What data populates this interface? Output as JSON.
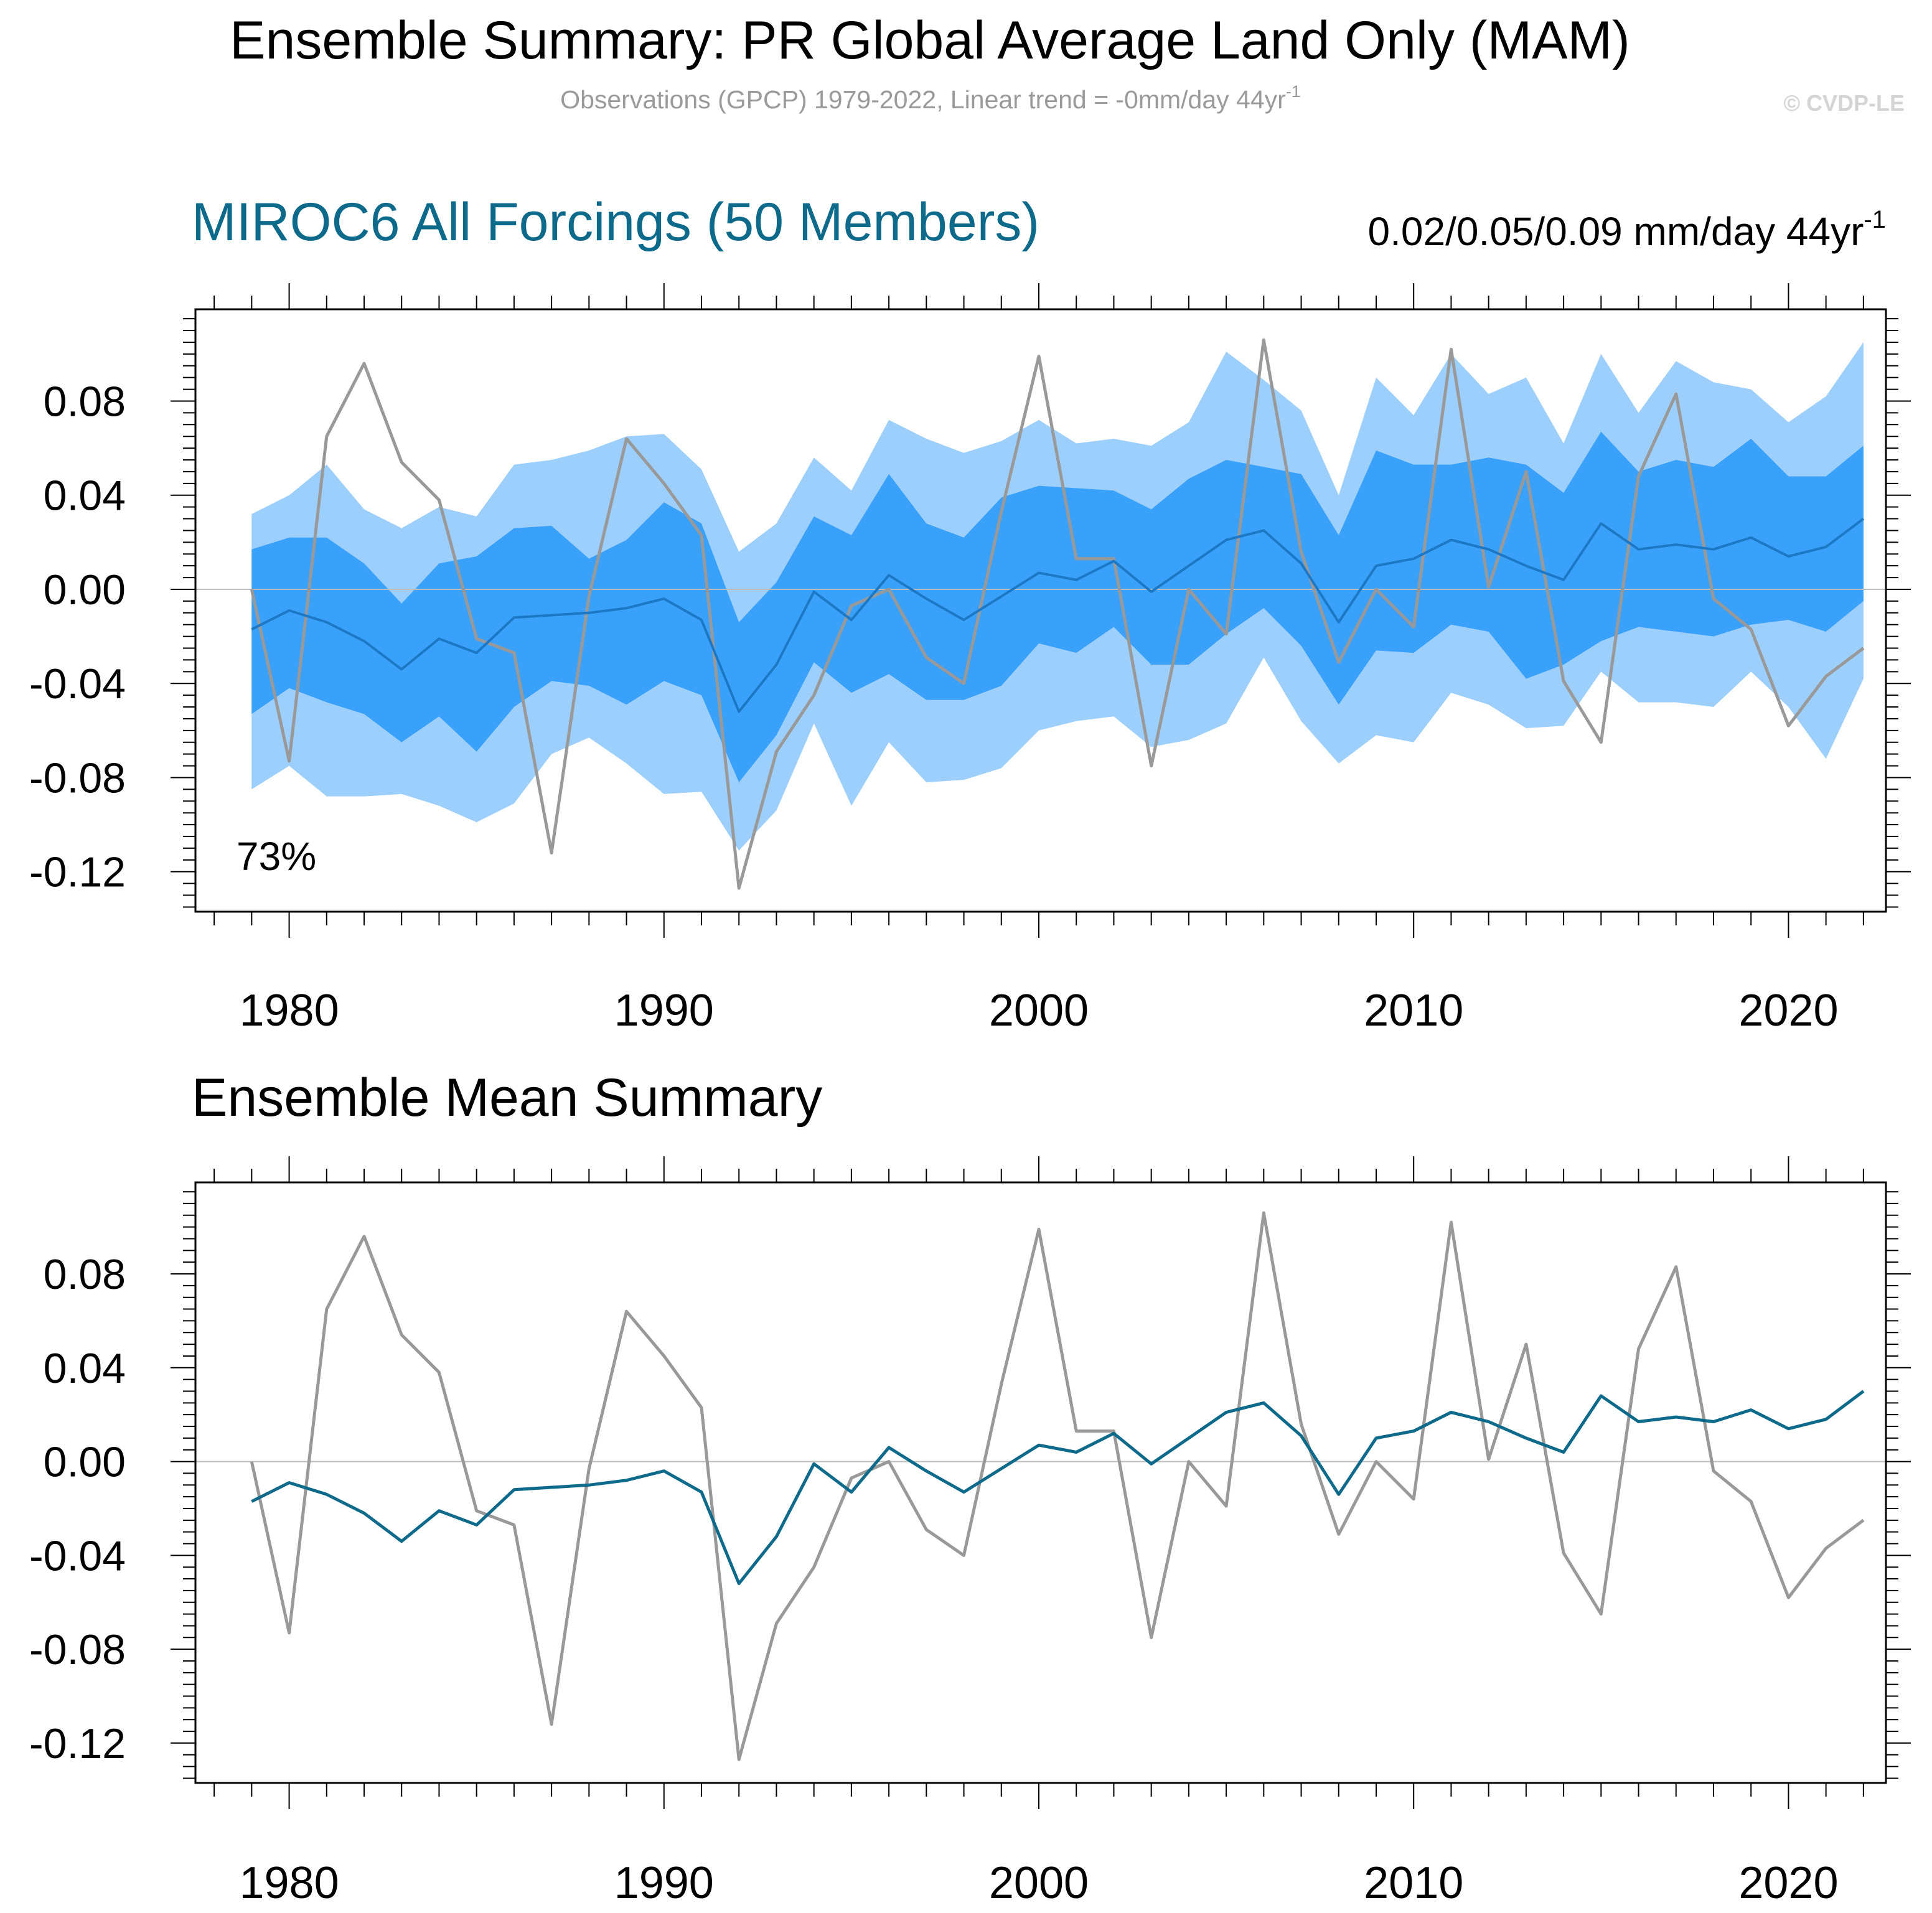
{
  "header": {
    "title": "Ensemble Summary: PR Global Average Land Only (MAM)",
    "subtitle": "Observations (GPCP) 1979-2022, Linear trend = -0mm/day 44yr",
    "subtitle_sup": "-1",
    "copyright": "© CVDP-LE"
  },
  "panel1": {
    "title": "MIROC6 All Forcings (50 Members)",
    "trend_text": "0.02/0.05/0.09 mm/day 44yr",
    "trend_sup": "-1",
    "percent_label": "73%"
  },
  "panel2": {
    "title": "Ensemble Mean Summary"
  },
  "colors": {
    "outer_band": "#9dcffd",
    "inner_band": "#3aa1fb",
    "ens_mean_panel1": "#1c78c4",
    "ens_mean_panel2": "#0e6a8a",
    "observations": "#999999",
    "zero_line": "#bdbdbd"
  },
  "chart_data": [
    {
      "type": "area",
      "title": "MIROC6 All Forcings (50 Members)",
      "xlabel": "",
      "ylabel": "",
      "x": [
        1979,
        1980,
        1981,
        1982,
        1983,
        1984,
        1985,
        1986,
        1987,
        1988,
        1989,
        1990,
        1991,
        1992,
        1993,
        1994,
        1995,
        1996,
        1997,
        1998,
        1999,
        2000,
        2001,
        2002,
        2003,
        2004,
        2005,
        2006,
        2007,
        2008,
        2009,
        2010,
        2011,
        2012,
        2013,
        2014,
        2015,
        2016,
        2017,
        2018,
        2019,
        2020,
        2021,
        2022
      ],
      "xticks": [
        1980,
        1990,
        2000,
        2010,
        2020
      ],
      "xtick_labels": [
        "1980",
        "1990",
        "2000",
        "2010",
        "2020"
      ],
      "yticks": [
        0.08,
        0.04,
        0.0,
        -0.04,
        -0.08,
        -0.12
      ],
      "ytick_labels": [
        "0.08",
        "0.04",
        "0.00",
        "-0.04",
        "-0.08",
        "-0.12"
      ],
      "xlim": [
        1977.5,
        2022.6
      ],
      "ylim": [
        -0.137,
        0.119
      ],
      "series": [
        {
          "name": "ensemble 2.5-97.5% upper",
          "values": [
            0.032,
            0.04,
            0.053,
            0.034,
            0.026,
            0.035,
            0.031,
            0.053,
            0.055,
            0.059,
            0.065,
            0.066,
            0.051,
            0.016,
            0.028,
            0.056,
            0.042,
            0.072,
            0.064,
            0.058,
            0.063,
            0.072,
            0.062,
            0.064,
            0.061,
            0.071,
            0.101,
            0.089,
            0.076,
            0.04,
            0.09,
            0.074,
            0.1,
            0.083,
            0.09,
            0.062,
            0.1,
            0.075,
            0.097,
            0.088,
            0.085,
            0.071,
            0.082,
            0.105
          ]
        },
        {
          "name": "ensemble 2.5-97.5% lower",
          "values": [
            -0.085,
            -0.075,
            -0.088,
            -0.088,
            -0.087,
            -0.092,
            -0.099,
            -0.091,
            -0.07,
            -0.063,
            -0.074,
            -0.087,
            -0.086,
            -0.111,
            -0.094,
            -0.057,
            -0.092,
            -0.065,
            -0.082,
            -0.081,
            -0.076,
            -0.06,
            -0.056,
            -0.054,
            -0.067,
            -0.064,
            -0.057,
            -0.029,
            -0.056,
            -0.074,
            -0.062,
            -0.065,
            -0.044,
            -0.049,
            -0.059,
            -0.058,
            -0.035,
            -0.048,
            -0.048,
            -0.05,
            -0.035,
            -0.05,
            -0.072,
            -0.038
          ]
        },
        {
          "name": "ensemble 16-84% upper",
          "values": [
            0.017,
            0.022,
            0.022,
            0.011,
            -0.006,
            0.011,
            0.014,
            0.026,
            0.027,
            0.013,
            0.021,
            0.037,
            0.028,
            -0.014,
            0.003,
            0.031,
            0.023,
            0.049,
            0.028,
            0.022,
            0.039,
            0.044,
            0.043,
            0.042,
            0.034,
            0.047,
            0.055,
            0.052,
            0.049,
            0.023,
            0.059,
            0.053,
            0.053,
            0.056,
            0.053,
            0.041,
            0.067,
            0.05,
            0.055,
            0.052,
            0.064,
            0.048,
            0.048,
            0.061
          ]
        },
        {
          "name": "ensemble 16-84% lower",
          "values": [
            -0.053,
            -0.042,
            -0.048,
            -0.053,
            -0.065,
            -0.054,
            -0.069,
            -0.05,
            -0.039,
            -0.041,
            -0.049,
            -0.039,
            -0.045,
            -0.082,
            -0.062,
            -0.031,
            -0.044,
            -0.036,
            -0.047,
            -0.047,
            -0.041,
            -0.023,
            -0.027,
            -0.016,
            -0.032,
            -0.032,
            -0.019,
            -0.008,
            -0.024,
            -0.049,
            -0.026,
            -0.027,
            -0.015,
            -0.018,
            -0.038,
            -0.032,
            -0.022,
            -0.016,
            -0.018,
            -0.02,
            -0.015,
            -0.013,
            -0.018,
            -0.005
          ]
        },
        {
          "name": "ensemble mean",
          "values": [
            -0.017,
            -0.009,
            -0.014,
            -0.022,
            -0.034,
            -0.021,
            -0.027,
            -0.012,
            -0.011,
            -0.01,
            -0.008,
            -0.004,
            -0.013,
            -0.052,
            -0.032,
            -0.001,
            -0.013,
            0.006,
            -0.004,
            -0.013,
            -0.003,
            0.007,
            0.004,
            0.012,
            -0.001,
            0.01,
            0.021,
            0.025,
            0.011,
            -0.014,
            0.01,
            0.013,
            0.021,
            0.017,
            0.01,
            0.004,
            0.028,
            0.017,
            0.019,
            0.017,
            0.022,
            0.014,
            0.018,
            0.03
          ]
        },
        {
          "name": "observations (GPCP)",
          "values": [
            0.0,
            -0.073,
            0.065,
            0.096,
            0.054,
            0.038,
            -0.021,
            -0.027,
            -0.112,
            -0.003,
            0.064,
            0.045,
            0.023,
            -0.127,
            -0.069,
            -0.045,
            -0.007,
            0.0,
            -0.029,
            -0.04,
            0.033,
            0.099,
            0.013,
            0.013,
            -0.075,
            0.0,
            -0.019,
            0.106,
            0.016,
            -0.031,
            0.0,
            -0.016,
            0.102,
            0.001,
            0.05,
            -0.039,
            -0.065,
            0.048,
            0.083,
            -0.004,
            -0.017,
            -0.058,
            -0.037,
            -0.025
          ]
        }
      ]
    },
    {
      "type": "line",
      "title": "Ensemble Mean Summary",
      "xlabel": "",
      "ylabel": "",
      "xticks": [
        1980,
        1990,
        2000,
        2010,
        2020
      ],
      "xtick_labels": [
        "1980",
        "1990",
        "2000",
        "2010",
        "2020"
      ],
      "yticks": [
        0.08,
        0.04,
        0.0,
        -0.04,
        -0.08,
        -0.12
      ],
      "ytick_labels": [
        "0.08",
        "0.04",
        "0.00",
        "-0.04",
        "-0.08",
        "-0.12"
      ],
      "xlim": [
        1977.5,
        2022.6
      ],
      "ylim": [
        -0.137,
        0.119
      ],
      "series": [
        {
          "name": "ensemble mean",
          "values": "same as panel 1 ensemble mean"
        },
        {
          "name": "observations (GPCP)",
          "values": "same as panel 1 observations"
        }
      ]
    }
  ]
}
